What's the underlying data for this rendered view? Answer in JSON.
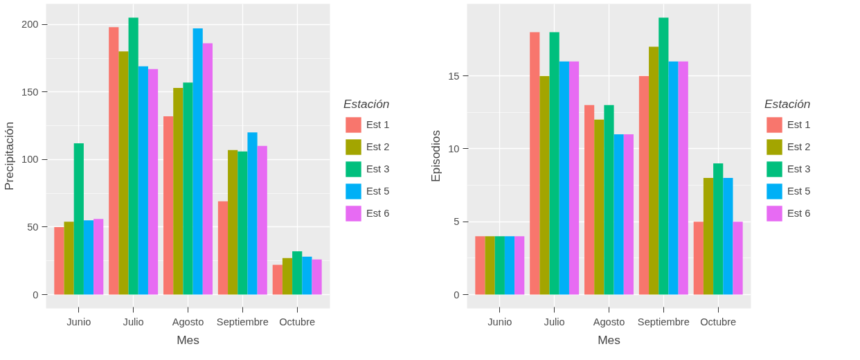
{
  "chart_data": [
    {
      "type": "bar",
      "xlabel": "Mes",
      "ylabel": "Precipitación",
      "legend_title": "Estación",
      "categories": [
        "Junio",
        "Julio",
        "Agosto",
        "Septiembre",
        "Octubre"
      ],
      "ylim": [
        -10.25,
        215.25
      ],
      "yticks": [
        0,
        50,
        100,
        150,
        200
      ],
      "grid": true,
      "legend": "right",
      "series": [
        {
          "name": "Est 1",
          "color": "#f8766d",
          "values": [
            50,
            198,
            132,
            69,
            22
          ]
        },
        {
          "name": "Est 2",
          "color": "#a3a500",
          "values": [
            54,
            180,
            153,
            107,
            27
          ]
        },
        {
          "name": "Est 3",
          "color": "#00bf7d",
          "values": [
            112,
            205,
            157,
            106,
            32
          ]
        },
        {
          "name": "Est 5",
          "color": "#00b0f6",
          "values": [
            55,
            169,
            197,
            120,
            28
          ]
        },
        {
          "name": "Est 6",
          "color": "#e76bf3",
          "values": [
            56,
            167,
            186,
            110,
            26
          ]
        }
      ]
    },
    {
      "type": "bar",
      "xlabel": "Mes",
      "ylabel": "Episodios",
      "legend_title": "Estación",
      "categories": [
        "Junio",
        "Julio",
        "Agosto",
        "Septiembre",
        "Octubre"
      ],
      "ylim": [
        -0.95,
        19.95
      ],
      "yticks": [
        0,
        5,
        10,
        15
      ],
      "grid": true,
      "legend": "right",
      "series": [
        {
          "name": "Est 1",
          "color": "#f8766d",
          "values": [
            4,
            18,
            13,
            15,
            5
          ]
        },
        {
          "name": "Est 2",
          "color": "#a3a500",
          "values": [
            4,
            15,
            12,
            17,
            8
          ]
        },
        {
          "name": "Est 3",
          "color": "#00bf7d",
          "values": [
            4,
            18,
            13,
            19,
            9
          ]
        },
        {
          "name": "Est 5",
          "color": "#00b0f6",
          "values": [
            4,
            16,
            11,
            16,
            8
          ]
        },
        {
          "name": "Est 6",
          "color": "#e76bf3",
          "values": [
            4,
            16,
            11,
            16,
            5
          ]
        }
      ]
    }
  ]
}
